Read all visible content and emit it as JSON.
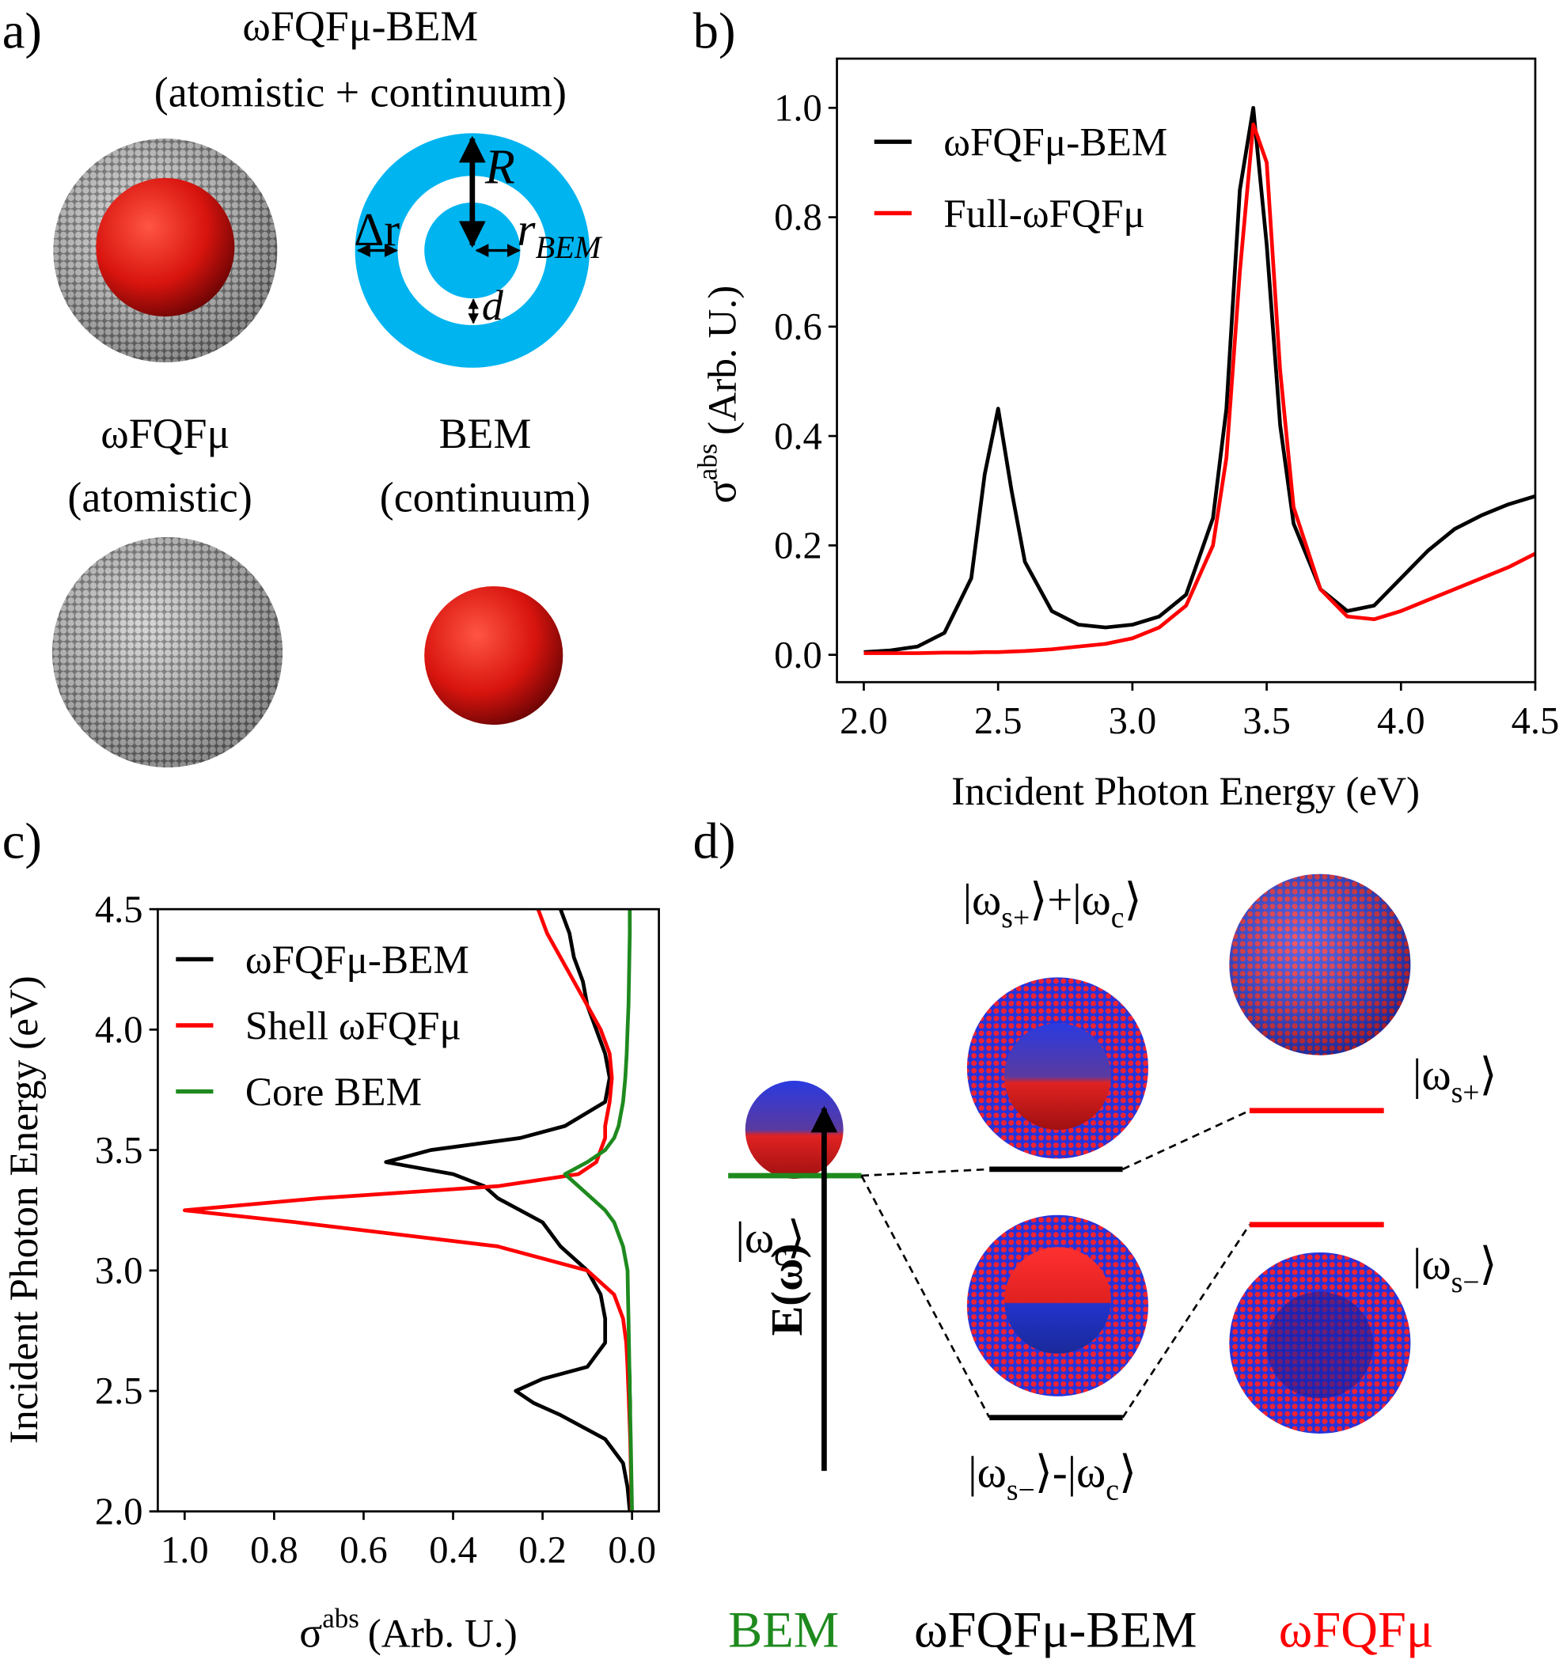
{
  "panel_labels": [
    "a)",
    "b)",
    "c)",
    "d)"
  ],
  "panel_a": {
    "top_title": "ωFQFμ-BEM",
    "top_subtitle": "(atomistic + continuum)",
    "left_title": "ωFQFμ",
    "left_subtitle": "(atomistic)",
    "right_title": "BEM",
    "right_subtitle": "(continuum)",
    "dim_R": "R",
    "dim_dr": "Δr",
    "dim_r": "r",
    "dim_r_sub": "BEM",
    "dim_d": "d"
  },
  "chart_data": [
    {
      "type": "line",
      "x": [
        2.0,
        2.1,
        2.2,
        2.3,
        2.4,
        2.45,
        2.5,
        2.55,
        2.6,
        2.7,
        2.8,
        2.9,
        3.0,
        3.1,
        3.2,
        3.3,
        3.35,
        3.4,
        3.45,
        3.5,
        3.55,
        3.6,
        3.7,
        3.8,
        3.9,
        4.0,
        4.1,
        4.2,
        4.3,
        4.4,
        4.5
      ],
      "series": [
        {
          "name": "ωFQFμ-BEM",
          "color": "#000000",
          "values": [
            0.005,
            0.008,
            0.015,
            0.04,
            0.14,
            0.33,
            0.45,
            0.3,
            0.17,
            0.08,
            0.055,
            0.05,
            0.055,
            0.07,
            0.11,
            0.25,
            0.45,
            0.85,
            1.0,
            0.75,
            0.42,
            0.24,
            0.12,
            0.08,
            0.09,
            0.14,
            0.19,
            0.23,
            0.255,
            0.275,
            0.29
          ]
        },
        {
          "name": "Full-ωFQFμ",
          "color": "#ff0000",
          "values": [
            0.003,
            0.003,
            0.003,
            0.004,
            0.004,
            0.005,
            0.005,
            0.006,
            0.007,
            0.01,
            0.015,
            0.02,
            0.03,
            0.05,
            0.09,
            0.2,
            0.36,
            0.7,
            0.97,
            0.9,
            0.52,
            0.27,
            0.12,
            0.07,
            0.065,
            0.08,
            0.1,
            0.12,
            0.14,
            0.16,
            0.185
          ]
        }
      ],
      "xlabel": "Incident Photon Energy (eV)",
      "ylabel": {
        "symbol": "σ",
        "sup": "abs",
        "text": "(Arb. U.)"
      },
      "xlim": [
        1.9,
        4.5
      ],
      "ylim": [
        -0.05,
        1.09
      ],
      "xticks": [
        {
          "value": 2.0,
          "label": "2.0"
        },
        2.5,
        {
          "value": 3.0,
          "label": "3.0"
        },
        3.5,
        {
          "value": 4.0,
          "label": "4.0"
        },
        4.5
      ],
      "yticks": [
        {
          "value": 0,
          "label": "0.0"
        },
        0.2,
        0.4,
        0.6,
        0.8,
        {
          "value": 1,
          "label": "1.0"
        }
      ],
      "legend": "upper left"
    },
    {
      "type": "line",
      "orientation": "horizontal",
      "y": [
        2.0,
        2.1,
        2.2,
        2.3,
        2.4,
        2.45,
        2.5,
        2.55,
        2.6,
        2.7,
        2.8,
        2.9,
        3.0,
        3.1,
        3.2,
        3.25,
        3.3,
        3.35,
        3.4,
        3.45,
        3.5,
        3.55,
        3.6,
        3.7,
        3.8,
        3.9,
        4.0,
        4.1,
        4.2,
        4.3,
        4.4,
        4.5
      ],
      "series": [
        {
          "name": "ωFQFμ-BEM",
          "color": "#000000",
          "values": [
            0.005,
            0.01,
            0.02,
            0.06,
            0.16,
            0.22,
            0.26,
            0.2,
            0.1,
            0.06,
            0.06,
            0.07,
            0.1,
            0.16,
            0.2,
            0.25,
            0.3,
            0.33,
            0.4,
            0.55,
            0.45,
            0.25,
            0.15,
            0.06,
            0.05,
            0.06,
            0.08,
            0.1,
            0.11,
            0.13,
            0.14,
            0.16
          ]
        },
        {
          "name": "Shell ωFQFμ",
          "color": "#ff0000",
          "values": [
            0.001,
            0.002,
            0.003,
            0.004,
            0.006,
            0.007,
            0.008,
            0.009,
            0.01,
            0.013,
            0.02,
            0.04,
            0.1,
            0.3,
            0.75,
            1.0,
            0.7,
            0.3,
            0.12,
            0.08,
            0.07,
            0.06,
            0.06,
            0.05,
            0.045,
            0.05,
            0.07,
            0.1,
            0.13,
            0.16,
            0.19,
            0.21
          ]
        },
        {
          "name": "Core BEM",
          "color": "#1e8a1e",
          "values": [
            0.0,
            0.001,
            0.002,
            0.003,
            0.004,
            0.004,
            0.005,
            0.005,
            0.006,
            0.007,
            0.008,
            0.009,
            0.01,
            0.02,
            0.04,
            0.06,
            0.09,
            0.12,
            0.15,
            0.1,
            0.06,
            0.04,
            0.03,
            0.02,
            0.015,
            0.012,
            0.01,
            0.008,
            0.007,
            0.006,
            0.005,
            0.005
          ]
        }
      ],
      "xlabel": {
        "symbol": "σ",
        "sup": "abs",
        "text": "(Arb. U.)"
      },
      "ylabel": "Incident Photon Energy (eV)",
      "xlim": [
        1.06,
        -0.06
      ],
      "ylim": [
        2.0,
        4.5
      ],
      "xticks": [
        {
          "value": 1,
          "label": "1.0"
        },
        0.8,
        0.6,
        0.4,
        0.2,
        {
          "value": 0,
          "label": "0.0"
        }
      ],
      "yticks": [
        {
          "value": 2.0,
          "label": "2.0"
        },
        2.5,
        {
          "value": 3.0,
          "label": "3.0"
        },
        3.5,
        {
          "value": 4.0,
          "label": "4.0"
        },
        4.5
      ],
      "legend": "upper left"
    }
  ],
  "panel_d": {
    "states": {
      "bonding_plus": [
        "|ω",
        "s+",
        "⟩+|ω",
        "c",
        "⟩"
      ],
      "core": [
        "|ω",
        "c",
        "⟩"
      ],
      "shell_plus": [
        "|ω",
        "s+",
        "⟩"
      ],
      "shell_minus": [
        "|ω",
        "s−",
        "⟩"
      ],
      "bonding_minus": [
        "|ω",
        "s−",
        "⟩-|ω",
        "c",
        "⟩"
      ]
    },
    "energy_axis": "E(ω)",
    "legend": [
      {
        "text": "BEM",
        "color": "#1e8a1e"
      },
      {
        "text": "ωFQFμ-BEM",
        "color": "#000000"
      },
      {
        "text": "ωFQFμ",
        "color": "#ff0000"
      }
    ]
  }
}
